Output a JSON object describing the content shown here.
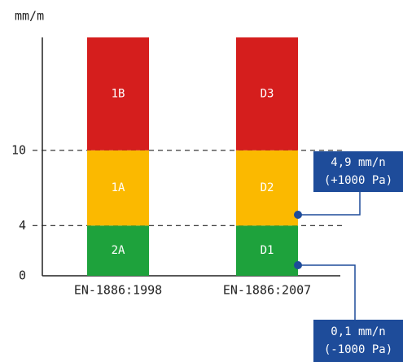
{
  "chart_data": {
    "type": "stacked_bar",
    "y_label": "mm/m",
    "categories": [
      "EN-1886:1998",
      "EN-1886:2007"
    ],
    "series": [
      {
        "color": "#1ea23c",
        "values": [
          4,
          4
        ],
        "segment_labels": [
          "2A",
          "D1"
        ]
      },
      {
        "color": "#fbb900",
        "values": [
          6,
          6
        ],
        "segment_labels": [
          "1A",
          "D2"
        ]
      },
      {
        "color": "#d51e1d",
        "values": [
          9,
          9
        ],
        "segment_labels": [
          "1B",
          "D3"
        ]
      }
    ],
    "ylim": [
      0,
      19
    ],
    "yticks": [
      0,
      4,
      10
    ],
    "grid": "dashed",
    "annotations": [
      {
        "line1": "4,9 mm/n",
        "line2": "(+1000 Pa)"
      },
      {
        "line1": "0,1 mm/n",
        "line2": "(-1000 Pa)"
      }
    ]
  }
}
